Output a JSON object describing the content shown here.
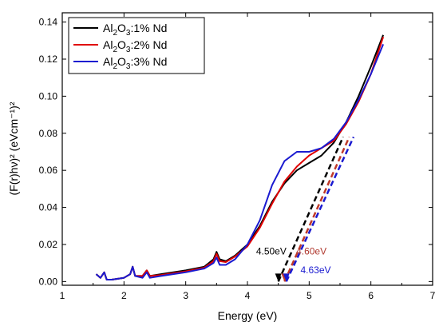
{
  "chart_data": {
    "type": "line",
    "xlabel": "Energy (eV)",
    "ylabel": "(F(r)hν)² (eVcm⁻¹)²",
    "xlim": [
      1,
      7
    ],
    "ylim": [
      -0.002,
      0.145
    ],
    "x_ticks": [
      "1",
      "2",
      "3",
      "4",
      "5",
      "6",
      "7"
    ],
    "y_ticks": [
      "0.00",
      "0.02",
      "0.04",
      "0.06",
      "0.08",
      "0.10",
      "0.12",
      "0.14"
    ],
    "x_tick_values": [
      1,
      2,
      3,
      4,
      5,
      6,
      7
    ],
    "y_tick_values": [
      0,
      0.02,
      0.04,
      0.06,
      0.08,
      0.1,
      0.12,
      0.14
    ],
    "legend_position": "top-left",
    "series": [
      {
        "name": "Al2O3:1% Nd",
        "color": "#000000",
        "points": [
          [
            1.55,
            0.004
          ],
          [
            1.62,
            0.002
          ],
          [
            1.68,
            0.005
          ],
          [
            1.72,
            0.001
          ],
          [
            1.8,
            0.001
          ],
          [
            2.0,
            0.002
          ],
          [
            2.1,
            0.004
          ],
          [
            2.14,
            0.008
          ],
          [
            2.18,
            0.003
          ],
          [
            2.3,
            0.003
          ],
          [
            2.37,
            0.006
          ],
          [
            2.42,
            0.003
          ],
          [
            2.6,
            0.004
          ],
          [
            3.0,
            0.006
          ],
          [
            3.3,
            0.008
          ],
          [
            3.45,
            0.012
          ],
          [
            3.5,
            0.016
          ],
          [
            3.55,
            0.012
          ],
          [
            3.65,
            0.011
          ],
          [
            3.8,
            0.014
          ],
          [
            4.0,
            0.02
          ],
          [
            4.2,
            0.03
          ],
          [
            4.4,
            0.043
          ],
          [
            4.6,
            0.053
          ],
          [
            4.8,
            0.06
          ],
          [
            5.0,
            0.064
          ],
          [
            5.2,
            0.068
          ],
          [
            5.4,
            0.075
          ],
          [
            5.6,
            0.086
          ],
          [
            5.8,
            0.1
          ],
          [
            6.0,
            0.116
          ],
          [
            6.2,
            0.133
          ]
        ]
      },
      {
        "name": "Al2O3:2% Nd",
        "color": "#e00000",
        "points": [
          [
            1.55,
            0.004
          ],
          [
            1.62,
            0.002
          ],
          [
            1.68,
            0.005
          ],
          [
            1.72,
            0.001
          ],
          [
            1.8,
            0.001
          ],
          [
            2.0,
            0.002
          ],
          [
            2.1,
            0.004
          ],
          [
            2.14,
            0.008
          ],
          [
            2.18,
            0.003
          ],
          [
            2.3,
            0.003
          ],
          [
            2.37,
            0.006
          ],
          [
            2.42,
            0.003
          ],
          [
            2.6,
            0.0035
          ],
          [
            3.0,
            0.0055
          ],
          [
            3.3,
            0.0075
          ],
          [
            3.45,
            0.011
          ],
          [
            3.5,
            0.015
          ],
          [
            3.55,
            0.011
          ],
          [
            3.65,
            0.0105
          ],
          [
            3.8,
            0.0135
          ],
          [
            4.0,
            0.019
          ],
          [
            4.2,
            0.029
          ],
          [
            4.4,
            0.042
          ],
          [
            4.6,
            0.054
          ],
          [
            4.8,
            0.062
          ],
          [
            5.0,
            0.068
          ],
          [
            5.2,
            0.072
          ],
          [
            5.4,
            0.076
          ],
          [
            5.6,
            0.085
          ],
          [
            5.8,
            0.097
          ],
          [
            6.0,
            0.112
          ],
          [
            6.2,
            0.132
          ]
        ]
      },
      {
        "name": "Al2O3:3% Nd",
        "color": "#1a1ad0",
        "points": [
          [
            1.55,
            0.004
          ],
          [
            1.62,
            0.002
          ],
          [
            1.68,
            0.005
          ],
          [
            1.72,
            0.001
          ],
          [
            1.8,
            0.001
          ],
          [
            2.0,
            0.002
          ],
          [
            2.1,
            0.004
          ],
          [
            2.14,
            0.008
          ],
          [
            2.18,
            0.003
          ],
          [
            2.3,
            0.002
          ],
          [
            2.37,
            0.005
          ],
          [
            2.42,
            0.002
          ],
          [
            2.6,
            0.003
          ],
          [
            3.0,
            0.005
          ],
          [
            3.3,
            0.007
          ],
          [
            3.45,
            0.01
          ],
          [
            3.5,
            0.013
          ],
          [
            3.55,
            0.009
          ],
          [
            3.65,
            0.009
          ],
          [
            3.8,
            0.012
          ],
          [
            4.0,
            0.02
          ],
          [
            4.2,
            0.033
          ],
          [
            4.4,
            0.052
          ],
          [
            4.6,
            0.065
          ],
          [
            4.8,
            0.07
          ],
          [
            5.0,
            0.07
          ],
          [
            5.2,
            0.072
          ],
          [
            5.4,
            0.077
          ],
          [
            5.6,
            0.086
          ],
          [
            5.8,
            0.098
          ],
          [
            6.0,
            0.112
          ],
          [
            6.2,
            0.128
          ]
        ]
      }
    ],
    "tangents": [
      {
        "color": "#000000",
        "points": [
          [
            4.5,
            0.0
          ],
          [
            5.55,
            0.078
          ]
        ]
      },
      {
        "color": "#c03a2a",
        "points": [
          [
            4.6,
            0.0
          ],
          [
            5.65,
            0.078
          ]
        ]
      },
      {
        "color": "#1a1ad0",
        "points": [
          [
            4.63,
            0.0
          ],
          [
            5.72,
            0.078
          ]
        ]
      }
    ],
    "annotations": [
      {
        "text": "4.50eV",
        "color": "#000000",
        "x": 4.14,
        "y": 0.0145
      },
      {
        "text": "4.60eV",
        "color": "#b03a30",
        "x": 4.79,
        "y": 0.0145
      },
      {
        "text": "4.63eV",
        "color": "#1a1ad0",
        "x": 4.86,
        "y": 0.0045
      }
    ]
  }
}
